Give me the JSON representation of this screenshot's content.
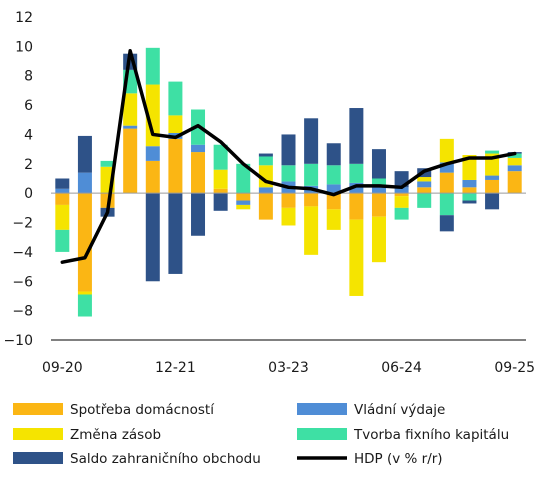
{
  "chart_data": {
    "type": "bar",
    "stacked": true,
    "ylim": [
      -10,
      12
    ],
    "yticks": [
      -10,
      -8,
      -6,
      -4,
      -2,
      0,
      2,
      4,
      6,
      8,
      10,
      12
    ],
    "xtick_labels": [
      {
        "label": "09-20",
        "index": 0
      },
      {
        "label": "12-21",
        "index": 5
      },
      {
        "label": "03-23",
        "index": 10
      },
      {
        "label": "06-24",
        "index": 15
      },
      {
        "label": "09-25",
        "index": 20
      }
    ],
    "categories": [
      "Q3 2020",
      "Q4 2020",
      "Q1 2021",
      "Q2 2021",
      "Q3 2021",
      "Q4 2021",
      "Q1 2022",
      "Q2 2022",
      "Q3 2022",
      "Q4 2022",
      "Q1 2023",
      "Q2 2023",
      "Q3 2023",
      "Q4 2023",
      "Q1 2024",
      "Q2 2024",
      "Q3 2024",
      "Q4 2024",
      "Q1 2025",
      "Q2 2025",
      "Q3 2025"
    ],
    "legend_position": "bottom",
    "series": [
      {
        "name": "Spotřeba domácností",
        "color": "#FBB614",
        "kind": "bar",
        "values": [
          -0.8,
          -6.7,
          -1.0,
          4.4,
          2.2,
          3.7,
          2.8,
          0.3,
          -0.5,
          -1.8,
          -1.0,
          -0.9,
          -1.1,
          -1.8,
          -1.6,
          -0.2,
          0.4,
          1.4,
          0.4,
          0.9,
          1.5
        ]
      },
      {
        "name": "Vládní výdaje",
        "color": "#4F8DD6",
        "kind": "bar",
        "values": [
          0.3,
          1.4,
          0.0,
          0.2,
          1.0,
          0.4,
          0.5,
          0.0,
          -0.3,
          0.4,
          0.8,
          0.5,
          0.6,
          0.7,
          0.5,
          0.4,
          0.4,
          0.7,
          0.5,
          0.3,
          0.4
        ]
      },
      {
        "name": "Změna zásob",
        "color": "#F5E400",
        "kind": "bar",
        "values": [
          -1.7,
          -0.2,
          1.8,
          2.2,
          4.2,
          1.2,
          0.0,
          1.3,
          -0.3,
          1.5,
          -1.2,
          -3.3,
          -1.4,
          -5.2,
          -3.1,
          -0.8,
          0.3,
          1.6,
          1.7,
          1.5,
          0.5
        ]
      },
      {
        "name": "Tvorba fixního kapitálu",
        "color": "#3EE0A4",
        "kind": "bar",
        "values": [
          -1.5,
          -1.5,
          0.4,
          1.6,
          2.5,
          2.3,
          2.4,
          1.7,
          2.0,
          0.6,
          1.1,
          1.5,
          1.3,
          1.3,
          0.5,
          -0.8,
          -1.0,
          -1.5,
          -0.5,
          0.2,
          0.3
        ]
      },
      {
        "name": "Saldo zahraničního obchodu",
        "color": "#2E5288",
        "kind": "bar",
        "values": [
          0.7,
          2.5,
          -0.6,
          1.1,
          -6.0,
          -5.5,
          -2.9,
          -1.2,
          0.0,
          0.2,
          2.1,
          3.1,
          1.5,
          3.8,
          2.0,
          1.1,
          0.6,
          -1.1,
          -0.2,
          -1.1,
          0.1
        ]
      },
      {
        "name": "HDP (v % r/r)",
        "color": "#000000",
        "kind": "line",
        "values": [
          -4.7,
          -4.4,
          -1.3,
          9.7,
          4.0,
          3.8,
          4.6,
          3.5,
          2.0,
          0.8,
          0.4,
          0.3,
          -0.1,
          0.5,
          0.5,
          0.4,
          1.5,
          2.0,
          2.4,
          2.4,
          2.7
        ]
      }
    ]
  }
}
